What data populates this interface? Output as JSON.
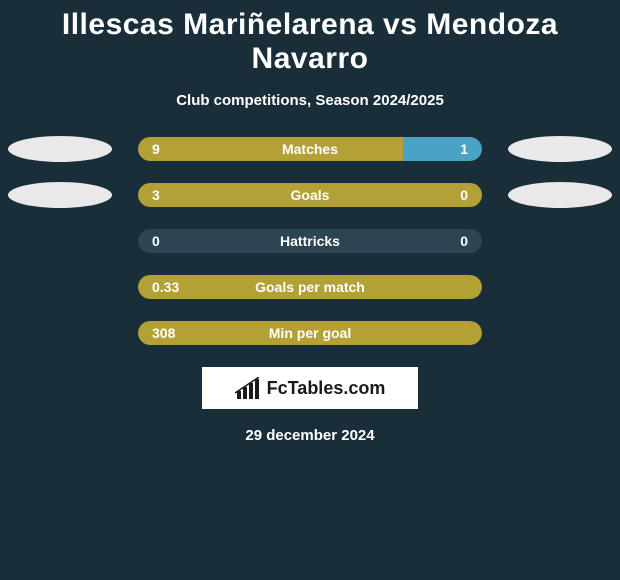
{
  "title": "Illescas Mariñelarena vs Mendoza Navarro",
  "subtitle": "Club competitions, Season 2024/2025",
  "date": "29 december 2024",
  "logo_text": "FcTables.com",
  "bar_color_left": "#b3a136",
  "bar_color_right": "#4aa3c4",
  "track_color": "#2c4552",
  "oval_left_color": "#e9e9e9",
  "oval_right_color": "#e9e9e9",
  "background_color": "#1a2e3a",
  "rows": [
    {
      "label": "Matches",
      "left_val": "9",
      "right_val": "1",
      "left_pct": 77,
      "right_pct": 23,
      "show_ovals": true
    },
    {
      "label": "Goals",
      "left_val": "3",
      "right_val": "0",
      "left_pct": 100,
      "right_pct": 0,
      "show_ovals": true
    },
    {
      "label": "Hattricks",
      "left_val": "0",
      "right_val": "0",
      "left_pct": 0,
      "right_pct": 0,
      "show_ovals": false
    },
    {
      "label": "Goals per match",
      "left_val": "0.33",
      "right_val": "",
      "left_pct": 100,
      "right_pct": 0,
      "show_ovals": false,
      "full_left": true
    },
    {
      "label": "Min per goal",
      "left_val": "308",
      "right_val": "",
      "left_pct": 100,
      "right_pct": 0,
      "show_ovals": false,
      "full_left": true
    }
  ]
}
